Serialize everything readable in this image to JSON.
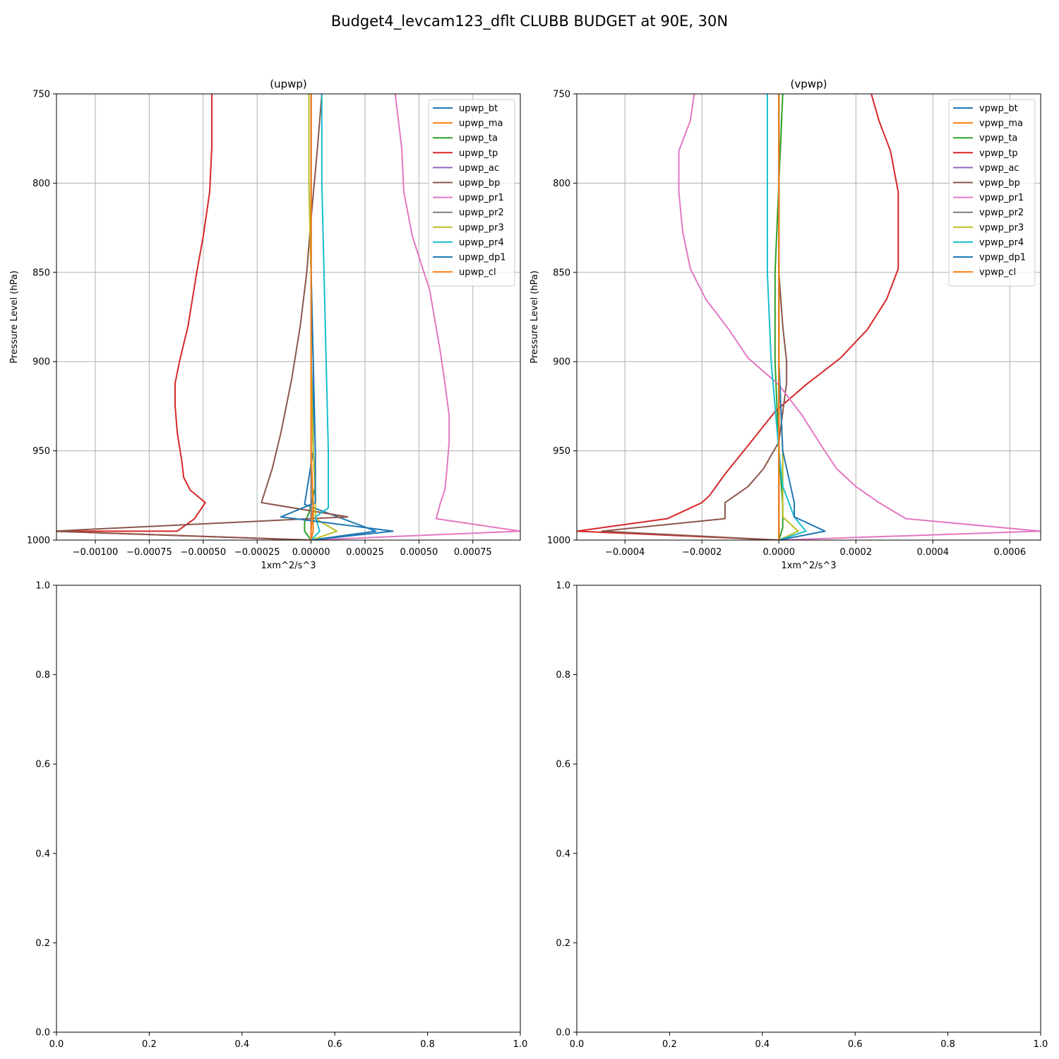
{
  "figure": {
    "suptitle": "Budget4_levcam123_dflt CLUBB BUDGET at 90E, 30N"
  },
  "chart_data": [
    {
      "type": "line",
      "title": "(upwp)",
      "xlabel": "1xm^2/s^3",
      "ylabel": "Pressure Level (hPa)",
      "xlim": [
        -0.00118,
        0.00097
      ],
      "ylim": [
        1000,
        750
      ],
      "xticks": [
        -0.001,
        -0.00075,
        -0.0005,
        -0.00025,
        0.0,
        0.00025,
        0.0005,
        0.00075
      ],
      "xtick_labels": [
        "−0.00100",
        "−0.00075",
        "−0.00050",
        "−0.00025",
        "0.00000",
        "0.00025",
        "0.00050",
        "0.00075"
      ],
      "yticks": [
        750,
        800,
        850,
        900,
        950,
        1000
      ],
      "ytick_labels": [
        "750",
        "800",
        "850",
        "900",
        "950",
        "1000"
      ],
      "grid": true,
      "legend": "upper right",
      "series": [
        {
          "name": "upwp_bt",
          "color": "#1f77b4",
          "x": [
            0.0,
            0.0,
            0.0,
            1e-05,
            1e-05,
            -3e-05,
            0.0003,
            0.0
          ],
          "y": [
            750,
            800,
            850,
            900,
            950,
            980,
            995,
            1000
          ]
        },
        {
          "name": "upwp_ma",
          "color": "#ff7f0e",
          "x": [
            0.0,
            0.0,
            0.0,
            0.0,
            0.0,
            1e-05,
            1e-05,
            0.0
          ],
          "y": [
            750,
            800,
            850,
            900,
            950,
            980,
            995,
            1000
          ]
        },
        {
          "name": "upwp_ta",
          "color": "#2ca02c",
          "x": [
            0.0,
            0.0,
            0.0,
            0.0,
            1e-05,
            2e-05,
            -1e-05,
            -3e-05,
            -3e-05,
            0.0
          ],
          "y": [
            750,
            800,
            850,
            900,
            950,
            970,
            985,
            990,
            995,
            1000
          ]
        },
        {
          "name": "upwp_tp",
          "color": "#d62728",
          "x": [
            -0.00046,
            -0.00046,
            -0.00047,
            -0.0005,
            -0.00053,
            -0.00057,
            -0.00061,
            -0.00063,
            -0.00063,
            -0.00062,
            -0.0006,
            -0.00059,
            -0.00056,
            -0.00049,
            -0.00054,
            -0.00062,
            -0.0012,
            0.0
          ],
          "y": [
            750,
            780,
            805,
            830,
            850,
            880,
            900,
            912,
            925,
            940,
            955,
            965,
            972,
            979,
            988,
            995,
            995,
            1000
          ]
        },
        {
          "name": "upwp_ac",
          "color": "#9467bd",
          "x": [
            0.0,
            0.0,
            0.0,
            0.0,
            0.0,
            0.0,
            0.0,
            0.0
          ],
          "y": [
            750,
            800,
            850,
            900,
            950,
            980,
            995,
            1000
          ]
        },
        {
          "name": "upwp_bp",
          "color": "#8c564b",
          "x": [
            5e-05,
            3e-05,
            0.0,
            -2e-05,
            -5e-05,
            -9e-05,
            -0.00014,
            -0.00018,
            -0.00023,
            0.00017,
            -0.0012,
            0.0
          ],
          "y": [
            750,
            780,
            820,
            850,
            880,
            910,
            940,
            960,
            979,
            987,
            995,
            1000
          ]
        },
        {
          "name": "upwp_pr1",
          "color": "#e377c2",
          "x": [
            0.00039,
            0.00042,
            0.00043,
            0.00047,
            0.00055,
            0.0006,
            0.00062,
            0.00064,
            0.00064,
            0.00063,
            0.00062,
            0.0006,
            0.00058,
            0.00097,
            0.0
          ],
          "y": [
            750,
            780,
            805,
            830,
            860,
            895,
            912,
            930,
            945,
            960,
            972,
            979,
            988,
            995,
            1000
          ]
        },
        {
          "name": "upwp_pr2",
          "color": "#7f7f7f",
          "x": [
            0.0,
            0.0,
            0.0,
            0.0,
            0.0,
            0.0,
            0.0,
            0.0
          ],
          "y": [
            750,
            800,
            850,
            900,
            950,
            980,
            995,
            1000
          ]
        },
        {
          "name": "upwp_pr3",
          "color": "#bcbd22",
          "x": [
            -1e-05,
            -1e-05,
            0.0,
            0.0,
            1e-05,
            2e-05,
            2e-05,
            0.00012,
            0.0
          ],
          "y": [
            750,
            800,
            850,
            900,
            950,
            975,
            988,
            995,
            1000
          ]
        },
        {
          "name": "upwp_pr4",
          "color": "#17becf",
          "x": [
            5e-05,
            5e-05,
            6e-05,
            7e-05,
            8e-05,
            8e-05,
            8e-05,
            2e-05,
            4e-05,
            0.0
          ],
          "y": [
            750,
            800,
            850,
            900,
            950,
            978,
            982,
            987,
            995,
            1000
          ]
        },
        {
          "name": "upwp_dp1",
          "color": "#1f77b4",
          "x": [
            0.0,
            0.0,
            0.0,
            1e-05,
            2e-05,
            2e-05,
            -0.00014,
            0.00038,
            0.0
          ],
          "y": [
            750,
            800,
            850,
            900,
            950,
            979,
            987,
            995,
            1000
          ]
        },
        {
          "name": "upwp_cl",
          "color": "#ff7f0e",
          "x": [
            0.0,
            0.0,
            0.0,
            0.0,
            0.0,
            1e-05,
            0.0,
            0.0
          ],
          "y": [
            750,
            800,
            850,
            900,
            950,
            980,
            995,
            1000
          ]
        }
      ]
    },
    {
      "type": "line",
      "title": "(vpwp)",
      "xlabel": "1xm^2/s^3",
      "ylabel": "Pressure Level (hPa)",
      "xlim": [
        -0.000525,
        0.00068
      ],
      "ylim": [
        1000,
        750
      ],
      "xticks": [
        -0.0004,
        -0.0002,
        0.0,
        0.0002,
        0.0004,
        0.0006
      ],
      "xtick_labels": [
        "−0.0004",
        "−0.0002",
        "0.0000",
        "0.0002",
        "0.0004",
        "0.0006"
      ],
      "yticks": [
        750,
        800,
        850,
        900,
        950,
        1000
      ],
      "ytick_labels": [
        "750",
        "800",
        "850",
        "900",
        "950",
        "1000"
      ],
      "grid": true,
      "legend": "upper right",
      "series": [
        {
          "name": "vpwp_bt",
          "color": "#1f77b4",
          "x": [
            0.0,
            0.0,
            0.0,
            0.0,
            0.0,
            0.0,
            0.0
          ],
          "y": [
            750,
            800,
            850,
            900,
            950,
            990,
            1000
          ]
        },
        {
          "name": "vpwp_ma",
          "color": "#ff7f0e",
          "x": [
            0.0,
            0.0,
            0.0,
            0.0,
            0.0,
            0.0,
            0.0
          ],
          "y": [
            750,
            800,
            850,
            900,
            950,
            990,
            1000
          ]
        },
        {
          "name": "vpwp_ta",
          "color": "#2ca02c",
          "x": [
            1e-05,
            0.0,
            -1e-05,
            -1e-05,
            0.0,
            1e-05,
            1e-05,
            0.0
          ],
          "y": [
            750,
            800,
            850,
            900,
            950,
            980,
            993,
            1000
          ]
        },
        {
          "name": "vpwp_tp",
          "color": "#d62728",
          "x": [
            0.00024,
            0.00026,
            0.00029,
            0.00031,
            0.00031,
            0.00031,
            0.00028,
            0.00023,
            0.00016,
            7e-05,
            -1e-05,
            -8e-05,
            -0.00014,
            -0.00018,
            -0.0002,
            -0.00029,
            -0.000525,
            0.0
          ],
          "y": [
            750,
            765,
            782,
            805,
            827,
            848,
            865,
            882,
            898,
            913,
            928,
            947,
            963,
            975,
            979,
            988,
            995,
            1000
          ]
        },
        {
          "name": "vpwp_ac",
          "color": "#9467bd",
          "x": [
            0.0,
            0.0,
            0.0,
            0.0,
            0.0,
            0.0,
            0.0
          ],
          "y": [
            750,
            800,
            850,
            900,
            950,
            990,
            1000
          ]
        },
        {
          "name": "vpwp_bp",
          "color": "#8c564b",
          "x": [
            0.0,
            0.0,
            0.0,
            1e-05,
            2e-05,
            2e-05,
            0.0,
            -4e-05,
            -8e-05,
            -0.00014,
            -0.00014,
            -0.00046,
            0.0
          ],
          "y": [
            750,
            800,
            850,
            880,
            900,
            912,
            945,
            960,
            970,
            979,
            988,
            995,
            1000
          ]
        },
        {
          "name": "vpwp_pr1",
          "color": "#e377c2",
          "x": [
            -0.00022,
            -0.00023,
            -0.00026,
            -0.00026,
            -0.00025,
            -0.00023,
            -0.00019,
            -0.00013,
            -8e-05,
            0.0,
            6e-05,
            0.00011,
            0.00015,
            0.0002,
            0.00026,
            0.00033,
            0.00068,
            0.0
          ],
          "y": [
            750,
            765,
            782,
            805,
            827,
            848,
            865,
            882,
            898,
            913,
            930,
            947,
            960,
            970,
            979,
            988,
            995,
            1000
          ]
        },
        {
          "name": "vpwp_pr2",
          "color": "#7f7f7f",
          "x": [
            0.0,
            0.0,
            0.0,
            0.0,
            0.0,
            0.0,
            0.0
          ],
          "y": [
            750,
            800,
            850,
            900,
            950,
            990,
            1000
          ]
        },
        {
          "name": "vpwp_pr3",
          "color": "#bcbd22",
          "x": [
            0.0,
            0.0,
            0.0,
            0.0,
            1e-05,
            1e-05,
            1e-05,
            5e-05,
            0.0
          ],
          "y": [
            750,
            800,
            850,
            900,
            950,
            970,
            987,
            995,
            1000
          ]
        },
        {
          "name": "vpwp_pr4",
          "color": "#17becf",
          "x": [
            -3e-05,
            -3e-05,
            -3e-05,
            -2e-05,
            0.0,
            1e-05,
            4e-05,
            7e-05,
            0.0
          ],
          "y": [
            750,
            800,
            850,
            900,
            950,
            970,
            987,
            995,
            1000
          ]
        },
        {
          "name": "vpwp_dp1",
          "color": "#1f77b4",
          "x": [
            0.0,
            0.0,
            0.0,
            0.0,
            1e-05,
            4e-05,
            4e-05,
            0.00012,
            0.0
          ],
          "y": [
            750,
            800,
            850,
            900,
            950,
            979,
            987,
            995,
            1000
          ]
        },
        {
          "name": "vpwp_cl",
          "color": "#ff7f0e",
          "x": [
            0.0,
            0.0,
            0.0,
            0.0,
            0.0,
            0.0,
            0.0
          ],
          "y": [
            750,
            800,
            850,
            900,
            950,
            990,
            1000
          ]
        }
      ]
    },
    {
      "type": "line",
      "title": "",
      "xlim": [
        0,
        1
      ],
      "ylim": [
        0,
        1
      ],
      "xticks": [
        0,
        0.2,
        0.4,
        0.6,
        0.8,
        1.0
      ],
      "xtick_labels": [
        "0.0",
        "0.2",
        "0.4",
        "0.6",
        "0.8",
        "1.0"
      ],
      "yticks": [
        0,
        0.2,
        0.4,
        0.6,
        0.8,
        1.0
      ],
      "ytick_labels": [
        "0.0",
        "0.2",
        "0.4",
        "0.6",
        "0.8",
        "1.0"
      ],
      "grid": false,
      "series": []
    },
    {
      "type": "line",
      "title": "",
      "xlim": [
        0,
        1
      ],
      "ylim": [
        0,
        1
      ],
      "xticks": [
        0,
        0.2,
        0.4,
        0.6,
        0.8,
        1.0
      ],
      "xtick_labels": [
        "0.0",
        "0.2",
        "0.4",
        "0.6",
        "0.8",
        "1.0"
      ],
      "yticks": [
        0,
        0.2,
        0.4,
        0.6,
        0.8,
        1.0
      ],
      "ytick_labels": [
        "0.0",
        "0.2",
        "0.4",
        "0.6",
        "0.8",
        "1.0"
      ],
      "grid": false,
      "series": []
    }
  ]
}
